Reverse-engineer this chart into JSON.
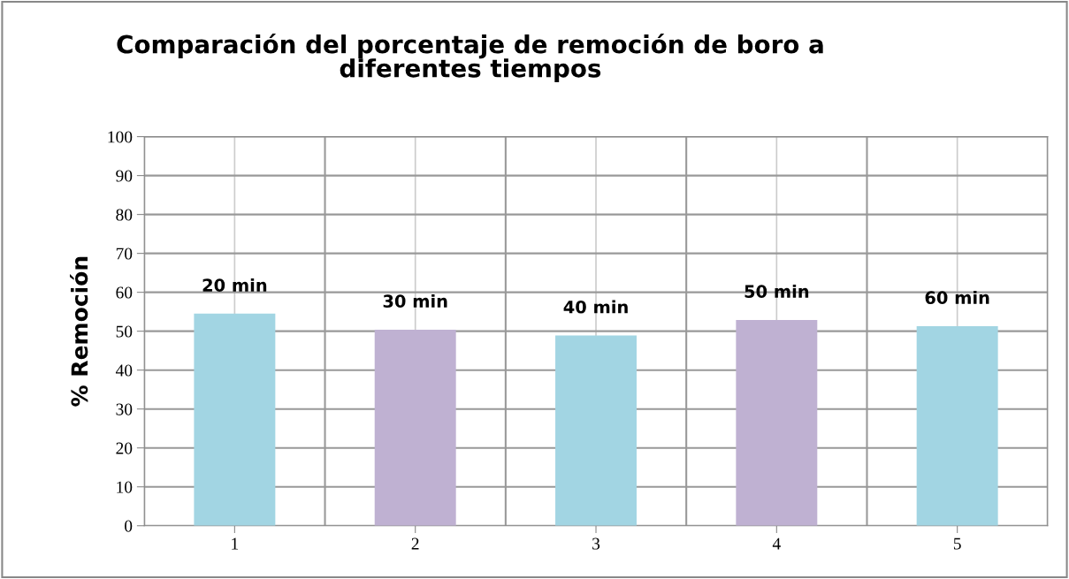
{
  "chart_data": {
    "type": "bar",
    "title": "Comparación del porcentaje de remoción de boro a\ndiferentes tiempos",
    "ylabel": "% Remoción",
    "categories": [
      "1",
      "2",
      "3",
      "4",
      "5"
    ],
    "values": [
      54.5,
      50.4,
      48.9,
      52.9,
      51.3
    ],
    "colors": [
      "#a2d5e3",
      "#bfb1d2",
      "#a2d5e3",
      "#bfb1d2",
      "#a2d5e3"
    ],
    "ylim": [
      0,
      100
    ],
    "yticks": [
      0,
      10,
      20,
      30,
      40,
      50,
      60,
      70,
      80,
      90,
      100
    ],
    "grid": true,
    "legend": false,
    "annotations": [
      {
        "text": "20 min",
        "x": "1",
        "y": 54.5
      },
      {
        "text": "30 min",
        "x": "2",
        "y": 50.4
      },
      {
        "text": "40 min",
        "x": "3",
        "y": 48.9
      },
      {
        "text": "50 min",
        "x": "4",
        "y": 52.9
      },
      {
        "text": "60 min",
        "x": "5",
        "y": 51.3
      }
    ]
  }
}
